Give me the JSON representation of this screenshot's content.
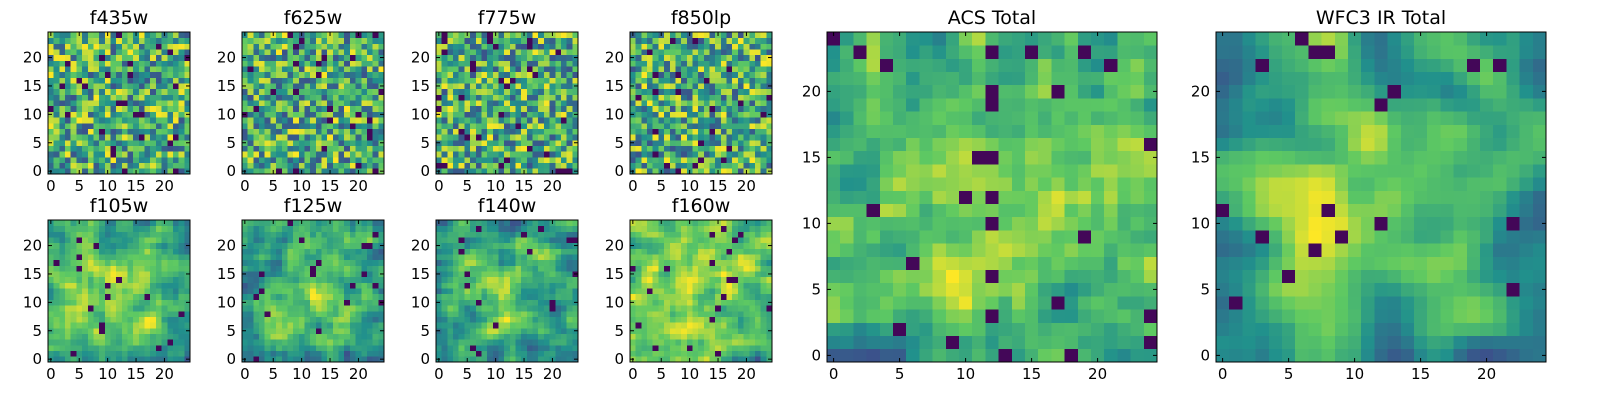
{
  "figure": {
    "colormap": "viridis",
    "colormap_stops": [
      "#440154",
      "#3b528b",
      "#21918c",
      "#5ec962",
      "#fde725"
    ]
  },
  "chart_data": [
    {
      "type": "heatmap",
      "title": "f435w",
      "grid_size": 25,
      "xticks": [
        0,
        5,
        10,
        15,
        20
      ],
      "yticks": [
        0,
        5,
        10,
        15,
        20
      ],
      "xlim": [
        0,
        25
      ],
      "ylim": [
        0,
        25
      ],
      "pattern": "noise",
      "seed": 11
    },
    {
      "type": "heatmap",
      "title": "f625w",
      "grid_size": 25,
      "xticks": [
        0,
        5,
        10,
        15,
        20
      ],
      "yticks": [
        0,
        5,
        10,
        15,
        20
      ],
      "xlim": [
        0,
        25
      ],
      "ylim": [
        0,
        25
      ],
      "pattern": "noise",
      "seed": 23
    },
    {
      "type": "heatmap",
      "title": "f775w",
      "grid_size": 25,
      "xticks": [
        0,
        5,
        10,
        15,
        20
      ],
      "yticks": [
        0,
        5,
        10,
        15,
        20
      ],
      "xlim": [
        0,
        25
      ],
      "ylim": [
        0,
        25
      ],
      "pattern": "noise",
      "seed": 37
    },
    {
      "type": "heatmap",
      "title": "f850lp",
      "grid_size": 25,
      "xticks": [
        0,
        5,
        10,
        15,
        20
      ],
      "yticks": [
        0,
        5,
        10,
        15,
        20
      ],
      "xlim": [
        0,
        25
      ],
      "ylim": [
        0,
        25
      ],
      "pattern": "noise",
      "seed": 41
    },
    {
      "type": "heatmap",
      "title": "f105w",
      "grid_size": 25,
      "xticks": [
        0,
        5,
        10,
        15,
        20
      ],
      "yticks": [
        0,
        5,
        10,
        15,
        20
      ],
      "xlim": [
        0,
        25
      ],
      "ylim": [
        0,
        25
      ],
      "pattern": "smooth",
      "seed": 53
    },
    {
      "type": "heatmap",
      "title": "f125w",
      "grid_size": 25,
      "xticks": [
        0,
        5,
        10,
        15,
        20
      ],
      "yticks": [
        0,
        5,
        10,
        15,
        20
      ],
      "xlim": [
        0,
        25
      ],
      "ylim": [
        0,
        25
      ],
      "pattern": "smooth",
      "seed": 67
    },
    {
      "type": "heatmap",
      "title": "f140w",
      "grid_size": 25,
      "xticks": [
        0,
        5,
        10,
        15,
        20
      ],
      "yticks": [
        0,
        5,
        10,
        15,
        20
      ],
      "xlim": [
        0,
        25
      ],
      "ylim": [
        0,
        25
      ],
      "pattern": "smooth",
      "seed": 71
    },
    {
      "type": "heatmap",
      "title": "f160w",
      "grid_size": 25,
      "xticks": [
        0,
        5,
        10,
        15,
        20
      ],
      "yticks": [
        0,
        5,
        10,
        15,
        20
      ],
      "xlim": [
        0,
        25
      ],
      "ylim": [
        0,
        25
      ],
      "pattern": "smooth",
      "seed": 83
    },
    {
      "type": "heatmap",
      "title": "ACS Total",
      "grid_size": 25,
      "xticks": [
        0,
        5,
        10,
        15,
        20
      ],
      "yticks": [
        0,
        5,
        10,
        15,
        20
      ],
      "xlim": [
        0,
        25
      ],
      "ylim": [
        0,
        25
      ],
      "pattern": "acs",
      "seed": 97
    },
    {
      "type": "heatmap",
      "title": "WFC3 IR Total",
      "grid_size": 25,
      "xticks": [
        0,
        5,
        10,
        15,
        20
      ],
      "yticks": [
        0,
        5,
        10,
        15,
        20
      ],
      "xlim": [
        0,
        25
      ],
      "ylim": [
        0,
        25
      ],
      "pattern": "ir",
      "seed": 101
    }
  ]
}
